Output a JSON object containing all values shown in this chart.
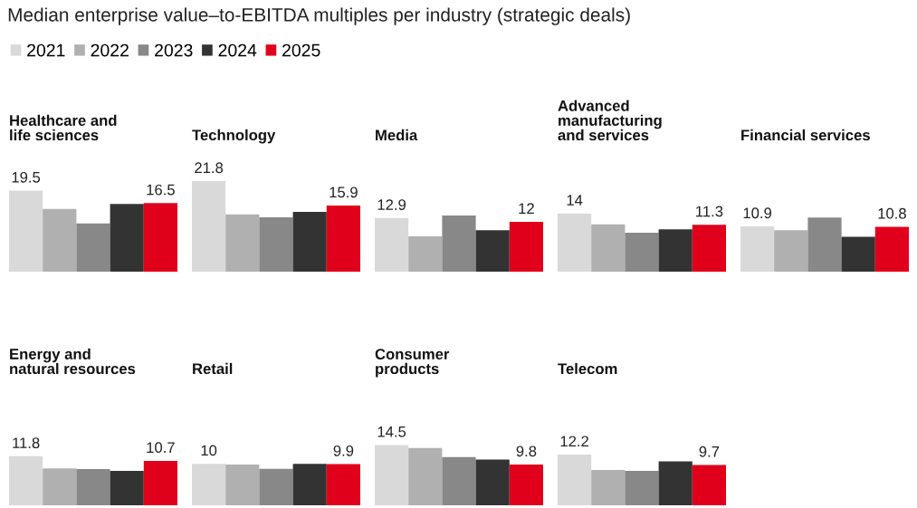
{
  "chart_data": [
    {
      "type": "bar",
      "title": "Healthcare and\nlife sciences",
      "annotations": [
        "Median enterprise value–to-EBITDA multiples per industry (strategic deals)"
      ],
      "legend": "top",
      "categories": [
        null
      ],
      "series": [
        {
          "name": "2021",
          "color": "#d9d9d9",
          "values": [
            19.5
          ],
          "value_labels": [
            "19.5"
          ]
        },
        {
          "name": "2022",
          "color": "#b0b0b0",
          "values": [
            15.1
          ],
          "value_labels": [
            null
          ]
        },
        {
          "name": "2023",
          "color": "#888888",
          "values": [
            11.6
          ],
          "value_labels": [
            null
          ]
        },
        {
          "name": "2024",
          "color": "#333333",
          "values": [
            16.3
          ],
          "value_labels": [
            null
          ]
        },
        {
          "name": "2025",
          "color": "#e0001b",
          "values": [
            16.5
          ],
          "value_labels": [
            "16.5"
          ]
        }
      ]
    },
    {
      "type": "bar",
      "title": "Technology",
      "legend": false,
      "categories": [
        null
      ],
      "series": [
        {
          "name": "2021",
          "color": "#d9d9d9",
          "values": [
            21.8
          ],
          "value_labels": [
            "21.8"
          ]
        },
        {
          "name": "2022",
          "color": "#b0b0b0",
          "values": [
            13.8
          ],
          "value_labels": [
            null
          ]
        },
        {
          "name": "2023",
          "color": "#888888",
          "values": [
            13.1
          ],
          "value_labels": [
            null
          ]
        },
        {
          "name": "2024",
          "color": "#333333",
          "values": [
            14.4
          ],
          "value_labels": [
            null
          ]
        },
        {
          "name": "2025",
          "color": "#e0001b",
          "values": [
            15.9
          ],
          "value_labels": [
            "15.9"
          ]
        }
      ]
    },
    {
      "type": "bar",
      "title": "Media",
      "legend": false,
      "categories": [
        null
      ],
      "series": [
        {
          "name": "2021",
          "color": "#d9d9d9",
          "values": [
            12.9
          ],
          "value_labels": [
            "12.9"
          ]
        },
        {
          "name": "2022",
          "color": "#b0b0b0",
          "values": [
            8.5
          ],
          "value_labels": [
            null
          ]
        },
        {
          "name": "2023",
          "color": "#888888",
          "values": [
            13.5
          ],
          "value_labels": [
            null
          ]
        },
        {
          "name": "2024",
          "color": "#333333",
          "values": [
            10.0
          ],
          "value_labels": [
            null
          ]
        },
        {
          "name": "2025",
          "color": "#e0001b",
          "values": [
            12
          ],
          "value_labels": [
            "12"
          ]
        }
      ]
    },
    {
      "type": "bar",
      "title": "Advanced\nmanufacturing\nand services",
      "legend": false,
      "categories": [
        null
      ],
      "series": [
        {
          "name": "2021",
          "color": "#d9d9d9",
          "values": [
            14
          ],
          "value_labels": [
            "14"
          ]
        },
        {
          "name": "2022",
          "color": "#b0b0b0",
          "values": [
            11.4
          ],
          "value_labels": [
            null
          ]
        },
        {
          "name": "2023",
          "color": "#888888",
          "values": [
            9.4
          ],
          "value_labels": [
            null
          ]
        },
        {
          "name": "2024",
          "color": "#333333",
          "values": [
            10.2
          ],
          "value_labels": [
            null
          ]
        },
        {
          "name": "2025",
          "color": "#e0001b",
          "values": [
            11.3
          ],
          "value_labels": [
            "11.3"
          ]
        }
      ]
    },
    {
      "type": "bar",
      "title": "Financial services",
      "legend": false,
      "categories": [
        null
      ],
      "series": [
        {
          "name": "2021",
          "color": "#d9d9d9",
          "values": [
            10.9
          ],
          "value_labels": [
            "10.9"
          ]
        },
        {
          "name": "2022",
          "color": "#b0b0b0",
          "values": [
            10.0
          ],
          "value_labels": [
            null
          ]
        },
        {
          "name": "2023",
          "color": "#888888",
          "values": [
            13.0
          ],
          "value_labels": [
            null
          ]
        },
        {
          "name": "2024",
          "color": "#333333",
          "values": [
            8.4
          ],
          "value_labels": [
            null
          ]
        },
        {
          "name": "2025",
          "color": "#e0001b",
          "values": [
            10.8
          ],
          "value_labels": [
            "10.8"
          ]
        }
      ]
    },
    {
      "type": "bar",
      "title": "Energy and\nnatural resources",
      "legend": false,
      "categories": [
        null
      ],
      "series": [
        {
          "name": "2021",
          "color": "#d9d9d9",
          "values": [
            11.8
          ],
          "value_labels": [
            "11.8"
          ]
        },
        {
          "name": "2022",
          "color": "#b0b0b0",
          "values": [
            8.9
          ],
          "value_labels": [
            null
          ]
        },
        {
          "name": "2023",
          "color": "#888888",
          "values": [
            8.7
          ],
          "value_labels": [
            null
          ]
        },
        {
          "name": "2024",
          "color": "#333333",
          "values": [
            8.3
          ],
          "value_labels": [
            null
          ]
        },
        {
          "name": "2025",
          "color": "#e0001b",
          "values": [
            10.7
          ],
          "value_labels": [
            "10.7"
          ]
        }
      ]
    },
    {
      "type": "bar",
      "title": "Retail",
      "legend": false,
      "categories": [
        null
      ],
      "series": [
        {
          "name": "2021",
          "color": "#d9d9d9",
          "values": [
            10
          ],
          "value_labels": [
            "10"
          ]
        },
        {
          "name": "2022",
          "color": "#b0b0b0",
          "values": [
            9.8
          ],
          "value_labels": [
            null
          ]
        },
        {
          "name": "2023",
          "color": "#888888",
          "values": [
            8.8
          ],
          "value_labels": [
            null
          ]
        },
        {
          "name": "2024",
          "color": "#333333",
          "values": [
            10.0
          ],
          "value_labels": [
            null
          ]
        },
        {
          "name": "2025",
          "color": "#e0001b",
          "values": [
            9.9
          ],
          "value_labels": [
            "9.9"
          ]
        }
      ]
    },
    {
      "type": "bar",
      "title": "Consumer\nproducts",
      "legend": false,
      "categories": [
        null
      ],
      "series": [
        {
          "name": "2021",
          "color": "#d9d9d9",
          "values": [
            14.5
          ],
          "value_labels": [
            "14.5"
          ]
        },
        {
          "name": "2022",
          "color": "#b0b0b0",
          "values": [
            13.8
          ],
          "value_labels": [
            null
          ]
        },
        {
          "name": "2023",
          "color": "#888888",
          "values": [
            11.6
          ],
          "value_labels": [
            null
          ]
        },
        {
          "name": "2024",
          "color": "#333333",
          "values": [
            11.0
          ],
          "value_labels": [
            null
          ]
        },
        {
          "name": "2025",
          "color": "#e0001b",
          "values": [
            9.8
          ],
          "value_labels": [
            "9.8"
          ]
        }
      ]
    },
    {
      "type": "bar",
      "title": "Telecom",
      "legend": false,
      "categories": [
        null
      ],
      "series": [
        {
          "name": "2021",
          "color": "#d9d9d9",
          "values": [
            12.2
          ],
          "value_labels": [
            "12.2"
          ]
        },
        {
          "name": "2022",
          "color": "#b0b0b0",
          "values": [
            8.5
          ],
          "value_labels": [
            null
          ]
        },
        {
          "name": "2023",
          "color": "#888888",
          "values": [
            8.3
          ],
          "value_labels": [
            null
          ]
        },
        {
          "name": "2024",
          "color": "#333333",
          "values": [
            10.6
          ],
          "value_labels": [
            null
          ]
        },
        {
          "name": "2025",
          "color": "#e0001b",
          "values": [
            9.7
          ],
          "value_labels": [
            "9.7"
          ]
        }
      ]
    }
  ]
}
